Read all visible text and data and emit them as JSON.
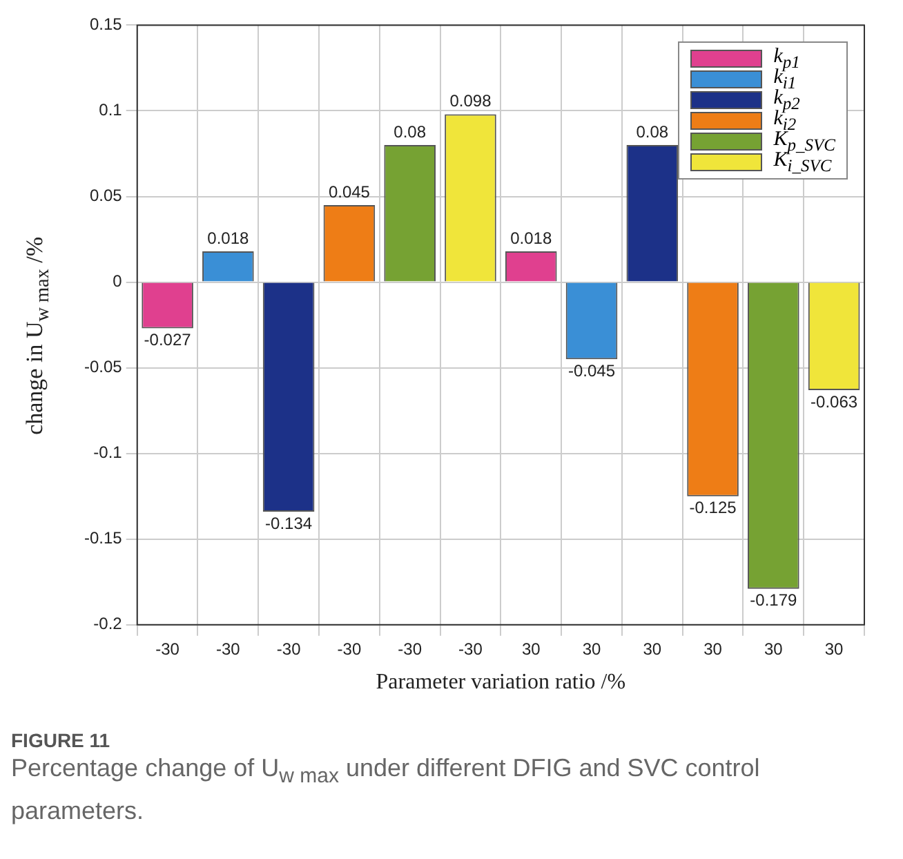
{
  "chart_data": {
    "type": "bar",
    "title": "FIGURE 11",
    "subtitle": "Percentage change of U$_{w max}$ under different DFIG and SVC control parameters.",
    "xlabel": "Parameter variation ratio /%",
    "ylabel": "change in U$_{w max}$ /%",
    "categories": [
      "-30",
      "-30",
      "-30",
      "-30",
      "-30",
      "-30",
      "30",
      "30",
      "30",
      "30",
      "30",
      "30"
    ],
    "series": [
      {
        "name": "k$_{p1}$",
        "color": "#e0408f",
        "values": [
          -0.027,
          null,
          null,
          null,
          null,
          null,
          0.018,
          null,
          null,
          null,
          null,
          null
        ]
      },
      {
        "name": "k$_{i1}$",
        "color": "#3a8fd6",
        "values": [
          null,
          0.018,
          null,
          null,
          null,
          null,
          null,
          -0.045,
          null,
          null,
          null,
          null
        ]
      },
      {
        "name": "k$_{p2}$",
        "color": "#1c3188",
        "values": [
          null,
          null,
          -0.134,
          null,
          null,
          null,
          null,
          null,
          0.08,
          null,
          null,
          null
        ]
      },
      {
        "name": "k$_{i2}$",
        "color": "#ee7d16",
        "values": [
          null,
          null,
          null,
          0.045,
          null,
          null,
          null,
          null,
          null,
          -0.125,
          null,
          null
        ]
      },
      {
        "name": "K$_{p_SVC}$",
        "color": "#76a233",
        "values": [
          null,
          null,
          null,
          null,
          0.08,
          null,
          null,
          null,
          null,
          null,
          -0.179,
          null
        ]
      },
      {
        "name": "K$_{i_SVC}$",
        "color": "#f0e53a",
        "values": [
          null,
          null,
          null,
          null,
          null,
          0.098,
          null,
          null,
          null,
          null,
          null,
          -0.063
        ]
      }
    ],
    "ylim": [
      -0.2,
      0.15
    ],
    "yticks": [
      -0.2,
      -0.15,
      -0.1,
      -0.05,
      0,
      0.05,
      0.1,
      0.15
    ],
    "grid": true,
    "legend": "top right",
    "data_labels": true
  }
}
